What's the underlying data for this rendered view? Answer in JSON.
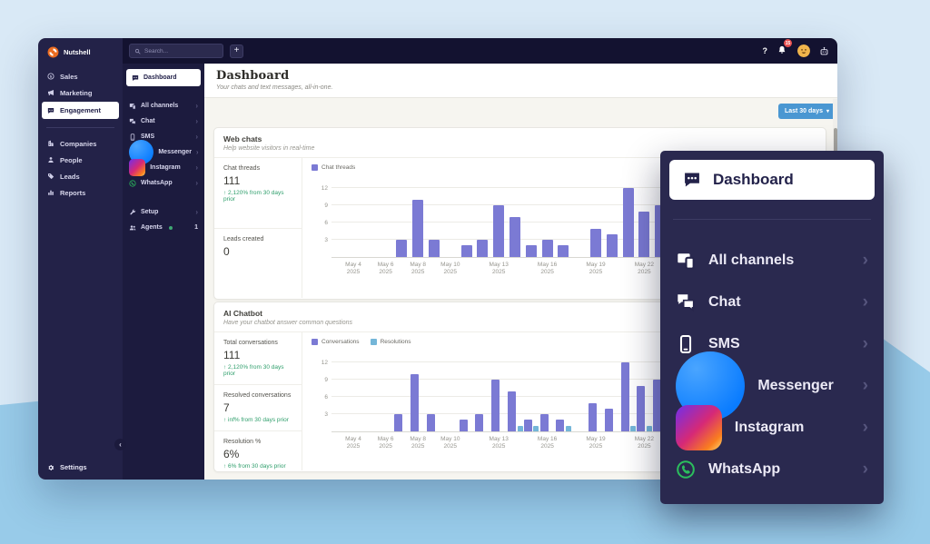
{
  "colors": {
    "page_bg": "#d9e9f6",
    "page_bg_accent": "#98cbe9",
    "window_navy": "#131230",
    "sidebar_navy": "#232248",
    "subnav_navy": "#1c1b3e",
    "overlay_navy": "#2a294f",
    "accent_blue": "#4a97d2",
    "bar_purple": "#7b7ad4",
    "bar_light_blue": "#74b6d8",
    "positive_green": "#2e9e6b",
    "badge_red": "#e8504f",
    "logo_orange": "#eb6c20",
    "content_bg": "#f6f5f0"
  },
  "topbar": {
    "search_placeholder": "Search...",
    "add_button_label": "+",
    "help_label": "?",
    "notification_count": "15"
  },
  "primary_sidebar": {
    "brand": "Nutshell",
    "items": [
      {
        "label": "Sales",
        "icon": "dollar-icon",
        "active": false
      },
      {
        "label": "Marketing",
        "icon": "megaphone-icon",
        "active": false
      },
      {
        "label": "Engagement",
        "icon": "chat-dots-icon",
        "active": true
      },
      {
        "label": "Companies",
        "icon": "building-icon",
        "active": false
      },
      {
        "label": "People",
        "icon": "person-icon",
        "active": false
      },
      {
        "label": "Leads",
        "icon": "tag-icon",
        "active": false
      },
      {
        "label": "Reports",
        "icon": "bar-chart-icon",
        "active": false
      }
    ],
    "settings_label": "Settings"
  },
  "subnav": {
    "active": "Dashboard",
    "items": [
      {
        "label": "All channels",
        "icon": "devices-icon"
      },
      {
        "label": "Chat",
        "icon": "chats-icon"
      },
      {
        "label": "SMS",
        "icon": "phone-icon"
      },
      {
        "label": "Messenger",
        "icon": "messenger-icon"
      },
      {
        "label": "Instagram",
        "icon": "instagram-icon"
      },
      {
        "label": "WhatsApp",
        "icon": "whatsapp-icon"
      }
    ],
    "footer_items": [
      {
        "label": "Setup",
        "icon": "wrench-icon",
        "chevron": true
      },
      {
        "label": "Agents",
        "icon": "agents-icon",
        "status_dot": true,
        "count": "1"
      }
    ]
  },
  "main": {
    "title": "Dashboard",
    "subtitle": "Your chats and text messages, all-in-one.",
    "date_filter_label": "Last 30 days"
  },
  "cards": [
    {
      "title": "Web chats",
      "subtitle": "Help website visitors in real-time",
      "stats": [
        {
          "label": "Chat threads",
          "value": "111",
          "delta": "↑ 2,120% from 30 days prior"
        },
        {
          "label": "Leads created",
          "value": "0",
          "delta": ""
        }
      ]
    },
    {
      "title": "AI Chatbot",
      "subtitle": "Have your chatbot answer common questions",
      "stats": [
        {
          "label": "Total conversations",
          "value": "111",
          "delta": "↑ 2,120% from 30 days prior"
        },
        {
          "label": "Resolved conversations",
          "value": "7",
          "delta": "↑ inf% from 30 days prior"
        },
        {
          "label": "Resolution %",
          "value": "6%",
          "delta": "↑ 6% from 30 days prior"
        }
      ]
    }
  ],
  "chart_data": [
    {
      "type": "bar",
      "title": "Web chats — Chat threads",
      "xlabel": "",
      "ylabel": "",
      "legend_position": "top-left",
      "grid": true,
      "categories": [
        "May 4",
        "May 5",
        "May 6",
        "May 7",
        "May 8",
        "May 9",
        "May 10",
        "May 11",
        "May 12",
        "May 13",
        "May 14",
        "May 15",
        "May 16",
        "May 17",
        "May 18",
        "May 19",
        "May 20",
        "May 21",
        "May 22",
        "May 23"
      ],
      "series": [
        {
          "name": "Chat threads",
          "color": "#7b7ad4",
          "values": [
            0,
            0,
            0,
            3,
            10,
            3,
            0,
            2,
            3,
            9,
            7,
            2,
            3,
            2,
            0,
            5,
            4,
            12,
            8,
            9
          ]
        }
      ],
      "y_ticks": [
        3,
        6,
        9,
        12
      ],
      "ylim": [
        0,
        13
      ],
      "x_ticks": [
        {
          "index": 0,
          "label": "May 4",
          "sub": "2025"
        },
        {
          "index": 2,
          "label": "May 6",
          "sub": "2025"
        },
        {
          "index": 4,
          "label": "May 8",
          "sub": "2025"
        },
        {
          "index": 6,
          "label": "May 10",
          "sub": "2025"
        },
        {
          "index": 9,
          "label": "May 13",
          "sub": "2025"
        },
        {
          "index": 12,
          "label": "May 16",
          "sub": "2025"
        },
        {
          "index": 15,
          "label": "May 19",
          "sub": "2025"
        },
        {
          "index": 18,
          "label": "May 22",
          "sub": "2025"
        }
      ]
    },
    {
      "type": "bar",
      "title": "AI Chatbot — Conversations and Resolutions",
      "xlabel": "",
      "ylabel": "",
      "legend_position": "top-left",
      "grid": true,
      "categories": [
        "May 4",
        "May 5",
        "May 6",
        "May 7",
        "May 8",
        "May 9",
        "May 10",
        "May 11",
        "May 12",
        "May 13",
        "May 14",
        "May 15",
        "May 16",
        "May 17",
        "May 18",
        "May 19",
        "May 20",
        "May 21",
        "May 22",
        "May 23"
      ],
      "series": [
        {
          "name": "Conversations",
          "color": "#7b7ad4",
          "values": [
            0,
            0,
            0,
            3,
            10,
            3,
            0,
            2,
            3,
            9,
            7,
            2,
            3,
            2,
            0,
            5,
            4,
            12,
            8,
            9
          ]
        },
        {
          "name": "Resolutions",
          "color": "#74b6d8",
          "values": [
            0,
            0,
            0,
            0,
            0,
            0,
            0,
            0,
            0,
            0,
            1,
            1,
            0,
            1,
            0,
            0,
            0,
            1,
            1,
            0
          ]
        }
      ],
      "y_ticks": [
        3,
        6,
        9,
        12
      ],
      "ylim": [
        0,
        13
      ],
      "x_ticks": [
        {
          "index": 0,
          "label": "May 4",
          "sub": "2025"
        },
        {
          "index": 2,
          "label": "May 6",
          "sub": "2025"
        },
        {
          "index": 4,
          "label": "May 8",
          "sub": "2025"
        },
        {
          "index": 6,
          "label": "May 10",
          "sub": "2025"
        },
        {
          "index": 9,
          "label": "May 13",
          "sub": "2025"
        },
        {
          "index": 12,
          "label": "May 16",
          "sub": "2025"
        },
        {
          "index": 15,
          "label": "May 19",
          "sub": "2025"
        },
        {
          "index": 18,
          "label": "May 22",
          "sub": "2025"
        }
      ]
    }
  ],
  "overlay_menu": {
    "active": {
      "label": "Dashboard",
      "icon": "chat-dots-icon"
    },
    "items": [
      {
        "label": "All channels",
        "icon": "devices-icon"
      },
      {
        "label": "Chat",
        "icon": "chats-icon"
      },
      {
        "label": "SMS",
        "icon": "phone-icon"
      },
      {
        "label": "Messenger",
        "icon": "messenger-icon"
      },
      {
        "label": "Instagram",
        "icon": "instagram-icon"
      },
      {
        "label": "WhatsApp",
        "icon": "whatsapp-icon"
      }
    ]
  }
}
